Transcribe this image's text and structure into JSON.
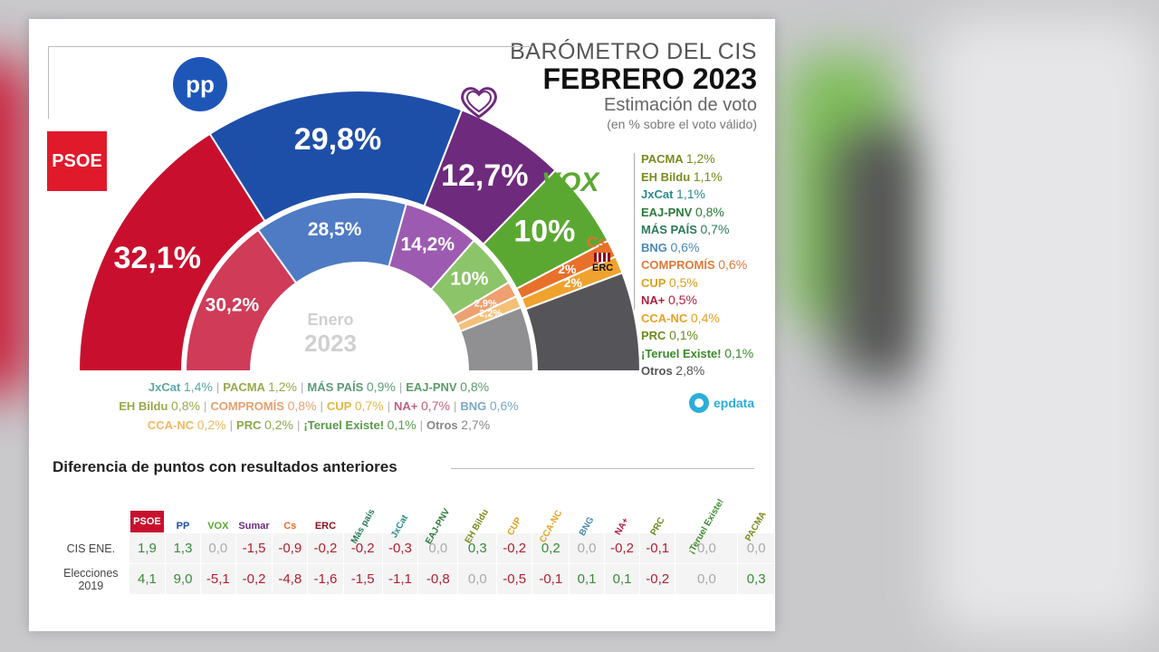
{
  "header": {
    "title": "BARÓMETRO DEL CIS",
    "subtitle": "FEBRERO 2023",
    "caption": "Estimación de voto",
    "note": "(en % sobre el voto válido)"
  },
  "inner_label": {
    "line1": "Enero",
    "line2": "2023"
  },
  "logos": {
    "psoe": "PSOE",
    "pp": "pp",
    "vox": "VOX",
    "cs": "Cs",
    "erc": "ERC"
  },
  "epdata": "epdata",
  "chart_data": [
    {
      "type": "pie",
      "title": "Febrero 2023",
      "series": [
        {
          "name": "PSOE",
          "value": 32.1,
          "label": "32,1%",
          "color": "#c8102e"
        },
        {
          "name": "PP",
          "value": 29.8,
          "label": "29,8%",
          "color": "#1e4fa8"
        },
        {
          "name": "Sumar",
          "value": 12.7,
          "label": "12,7%",
          "color": "#6e2a7d"
        },
        {
          "name": "VOX",
          "value": 10,
          "label": "10%",
          "color": "#5aa832"
        },
        {
          "name": "Cs",
          "value": 2,
          "label": "2%",
          "color": "#e8702a"
        },
        {
          "name": "ERC",
          "value": 2,
          "label": "2%",
          "color": "#f0a22e"
        },
        {
          "name": "Otros",
          "value": 11.4,
          "label": "",
          "color": "#555559"
        }
      ]
    },
    {
      "type": "pie",
      "title": "Enero 2023",
      "series": [
        {
          "name": "PSOE",
          "value": 30.2,
          "label": "30,2%",
          "color": "#d03b58"
        },
        {
          "name": "PP",
          "value": 28.5,
          "label": "28,5%",
          "color": "#4f7bc4"
        },
        {
          "name": "Sumar",
          "value": 14.2,
          "label": "14,2%",
          "color": "#9c5bb0"
        },
        {
          "name": "VOX",
          "value": 10,
          "label": "10%",
          "color": "#8cc46a"
        },
        {
          "name": "Cs",
          "value": 2.9,
          "label": "2,9%",
          "color": "#eea070"
        },
        {
          "name": "ERC",
          "value": 2.2,
          "label": "2,2%",
          "color": "#f4c078"
        },
        {
          "name": "Otros",
          "value": 12.0,
          "label": "",
          "color": "#909093"
        }
      ]
    },
    {
      "type": "table",
      "title": "Diferencia de puntos con resultados anteriores",
      "columns": [
        "PSOE",
        "PP",
        "VOX",
        "Sumar",
        "Cs",
        "ERC",
        "Más país",
        "JxCat",
        "EAJ-PNV",
        "EH Bildu",
        "CUP",
        "CCA-NC",
        "BNG",
        "NA+",
        "PRC",
        "¡Teruel Existe!",
        "PACMA"
      ],
      "rows": [
        {
          "label": "CIS ENE.",
          "values": [
            "1,9",
            "1,3",
            "0,0",
            "-1,5",
            "-0,9",
            "-0,2",
            "-0,2",
            "-0,3",
            "0,0",
            "0,3",
            "-0,2",
            "0,2",
            "0,0",
            "-0,2",
            "-0,1",
            "0,0",
            "0,0"
          ]
        },
        {
          "label": "Elecciones 2019",
          "values": [
            "4,1",
            "9,0",
            "-5,1",
            "-0,2",
            "-4,8",
            "-1,6",
            "-1,5",
            "-1,1",
            "-0,8",
            "0,0",
            "-0,5",
            "-0,1",
            "0,1",
            "0,1",
            "-0,2",
            "0,0",
            "0,3"
          ]
        }
      ]
    }
  ],
  "legend_right": [
    {
      "name": "PACMA",
      "value": "1,2",
      "color": "#7a8a1e"
    },
    {
      "name": "EH Bildu",
      "value": "1,1",
      "color": "#7a8a1e"
    },
    {
      "name": "JxCat",
      "value": "1,1",
      "color": "#2a8a8a"
    },
    {
      "name": "EAJ-PNV",
      "value": "0,8",
      "color": "#2a7a3a"
    },
    {
      "name": "MÁS PAÍS",
      "value": "0,7",
      "color": "#2a7a5a"
    },
    {
      "name": "BNG",
      "value": "0,6",
      "color": "#4a88b8"
    },
    {
      "name": "COMPROMÍS",
      "value": "0,6",
      "color": "#e07a3a"
    },
    {
      "name": "CUP",
      "value": "0,5",
      "color": "#d8a020"
    },
    {
      "name": "NA+",
      "value": "0,5",
      "color": "#b02040"
    },
    {
      "name": "CCA-NC",
      "value": "0,4",
      "color": "#e8a020"
    },
    {
      "name": "PRC",
      "value": "0,1",
      "color": "#6a8a1e"
    },
    {
      "name": "¡Teruel Existe!",
      "value": "0,1",
      "color": "#3a8a2a"
    },
    {
      "name": "Otros",
      "value": "2,8",
      "color": "#555555"
    }
  ],
  "legend_bottom": [
    [
      {
        "name": "JxCat",
        "value": "1,4",
        "color": "#5aa8a8"
      },
      {
        "name": "PACMA",
        "value": "1,2",
        "color": "#9aa84a"
      },
      {
        "name": "MÁS PAÍS",
        "value": "0,9",
        "color": "#5a9a7a"
      },
      {
        "name": "EAJ-PNV",
        "value": "0,8",
        "color": "#5a9a6a"
      }
    ],
    [
      {
        "name": "EH Bildu",
        "value": "0,8",
        "color": "#9aa84a"
      },
      {
        "name": "COMPROMÍS",
        "value": "0,8",
        "color": "#e8a070"
      },
      {
        "name": "CUP",
        "value": "0,7",
        "color": "#e0b840"
      },
      {
        "name": "NA+",
        "value": "0,7",
        "color": "#c0607a"
      },
      {
        "name": "BNG",
        "value": "0,6",
        "color": "#7aa8c8"
      }
    ],
    [
      {
        "name": "CCA-NC",
        "value": "0,2",
        "color": "#f0b860"
      },
      {
        "name": "PRC",
        "value": "0,2",
        "color": "#8aa84a"
      },
      {
        "name": "¡Teruel Existe!",
        "value": "0,1",
        "color": "#5a9a4a"
      },
      {
        "name": "Otros",
        "value": "2,7",
        "color": "#888888"
      }
    ]
  ],
  "table_header_colors": [
    "#c8102e",
    "#1e4fa8",
    "#5aa832",
    "#6e2a7d",
    "#e8702a",
    "#8a1020",
    "#2a7a5a",
    "#2a8a8a",
    "#2a7a3a",
    "#7a8a1e",
    "#d8a020",
    "#e8a020",
    "#4a88b8",
    "#b02040",
    "#6a8a1e",
    "#3a8a2a",
    "#7a8a1e"
  ],
  "value_colors": {
    "positive": "#3a8a3a",
    "negative": "#b02030",
    "zero": "#aaaaaa"
  }
}
